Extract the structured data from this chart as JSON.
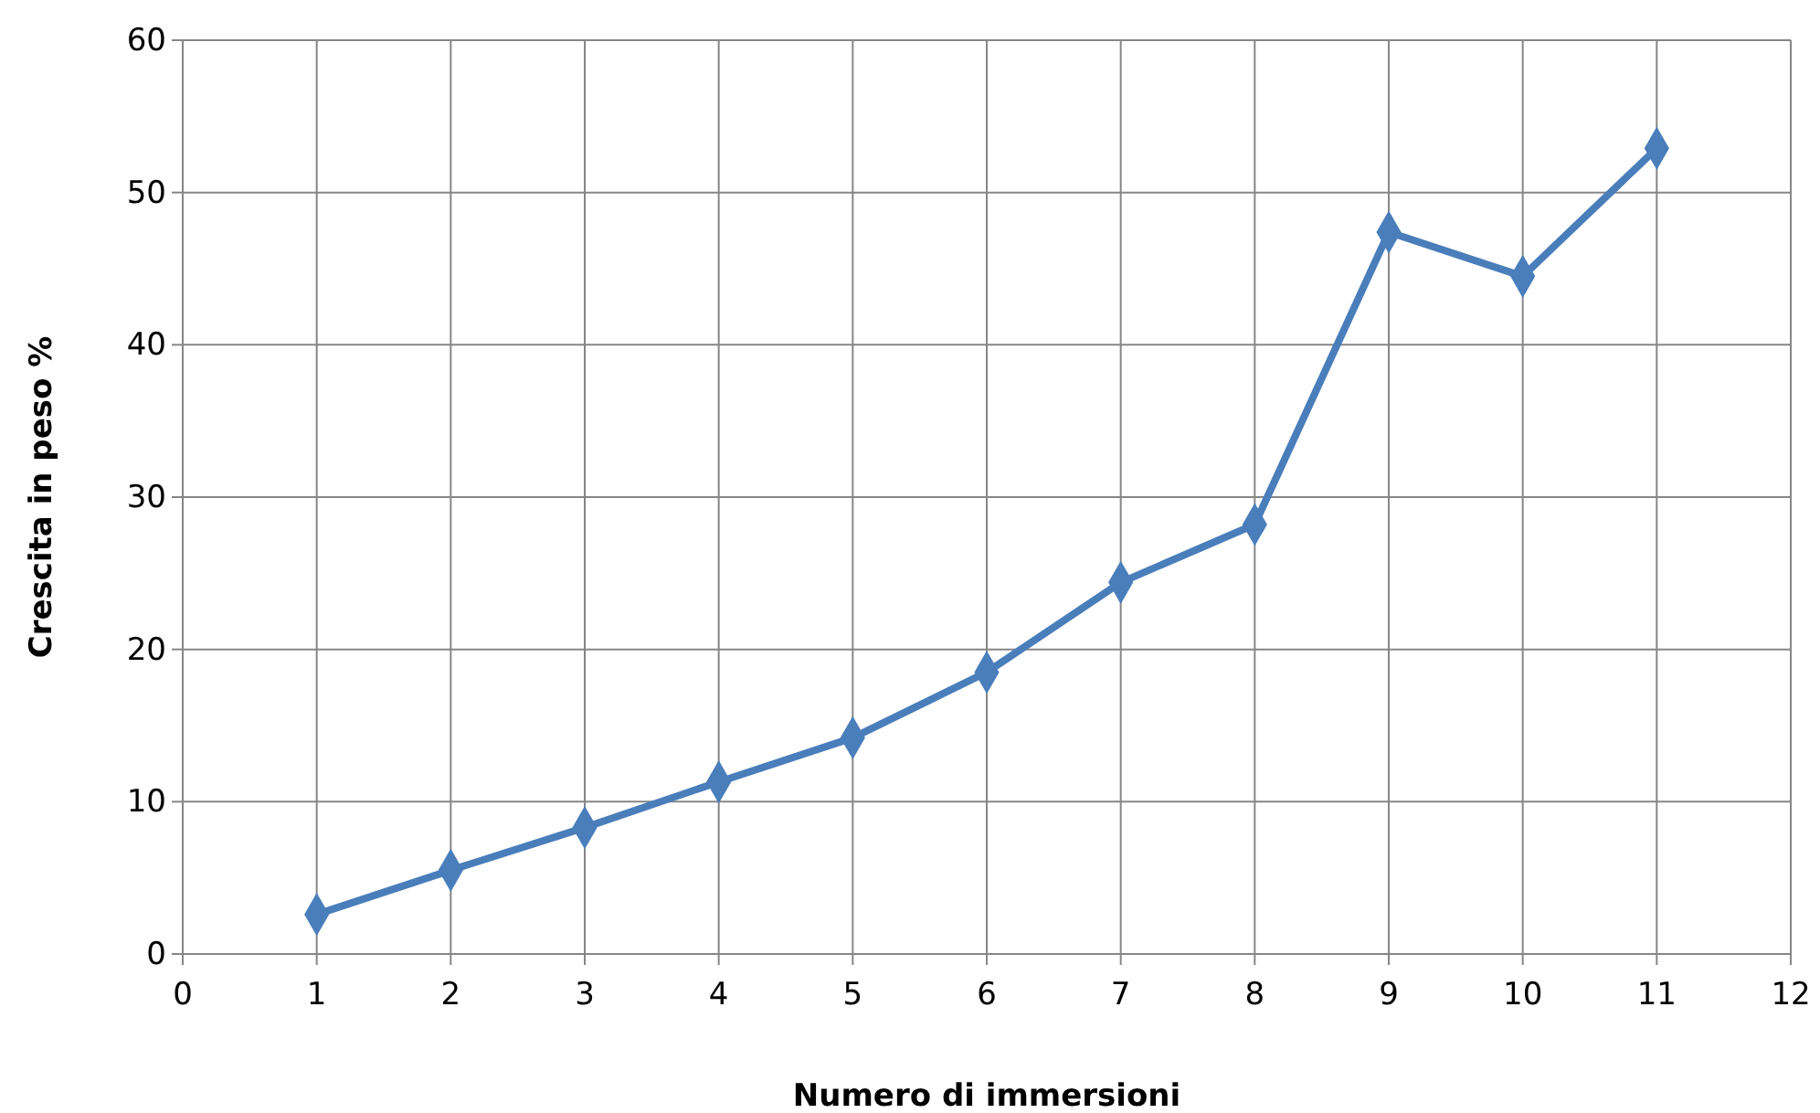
{
  "chart_data": {
    "type": "line",
    "xlabel": "Numero di immersioni",
    "ylabel": "Crescita  in peso %",
    "x": [
      1,
      2,
      3,
      4,
      5,
      6,
      7,
      8,
      9,
      10,
      11
    ],
    "series": [
      {
        "color": "#4a7ebb",
        "values": [
          2.6,
          5.5,
          8.3,
          11.3,
          14.2,
          18.5,
          24.4,
          28.2,
          47.4,
          44.5,
          52.9
        ]
      }
    ],
    "xlim": [
      0,
      12
    ],
    "xticks": [
      0,
      1,
      2,
      3,
      4,
      5,
      6,
      7,
      8,
      9,
      10,
      11,
      12
    ],
    "ylim": [
      0,
      60
    ],
    "yticks": [
      0,
      10,
      20,
      30,
      40,
      50,
      60
    ],
    "grid": true,
    "marker": "diamond",
    "line_style": "solid"
  }
}
